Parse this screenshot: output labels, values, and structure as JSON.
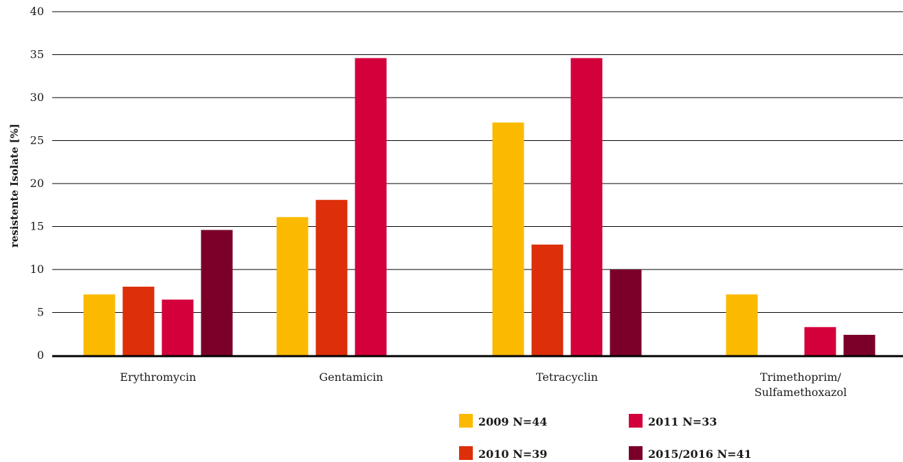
{
  "chart_data": {
    "type": "bar",
    "ylabel": "resistente Isolate [%]",
    "xlabel": "",
    "ylim": [
      0,
      40
    ],
    "yticks": [
      0,
      5,
      10,
      15,
      20,
      25,
      30,
      35,
      40
    ],
    "grid": true,
    "legend_position": "bottom",
    "categories": [
      [
        "Erythromycin"
      ],
      [
        "Gentamicin"
      ],
      [
        "Tetracyclin"
      ],
      [
        "Trimethoprim/",
        "Sulfamethoxazol"
      ]
    ],
    "series": [
      {
        "name": "2009 N=44",
        "color": "#fbba00",
        "values": [
          7.1,
          16.1,
          27.1,
          7.1
        ]
      },
      {
        "name": "2010 N=39",
        "color": "#dc2f0a",
        "values": [
          8.0,
          18.1,
          12.9,
          0
        ]
      },
      {
        "name": "2011 N=33",
        "color": "#d3003c",
        "values": [
          6.5,
          34.6,
          34.6,
          3.3
        ]
      },
      {
        "name": "2015/2016 N=41",
        "color": "#7a002a",
        "values": [
          14.6,
          0,
          10.0,
          2.4
        ]
      }
    ]
  }
}
